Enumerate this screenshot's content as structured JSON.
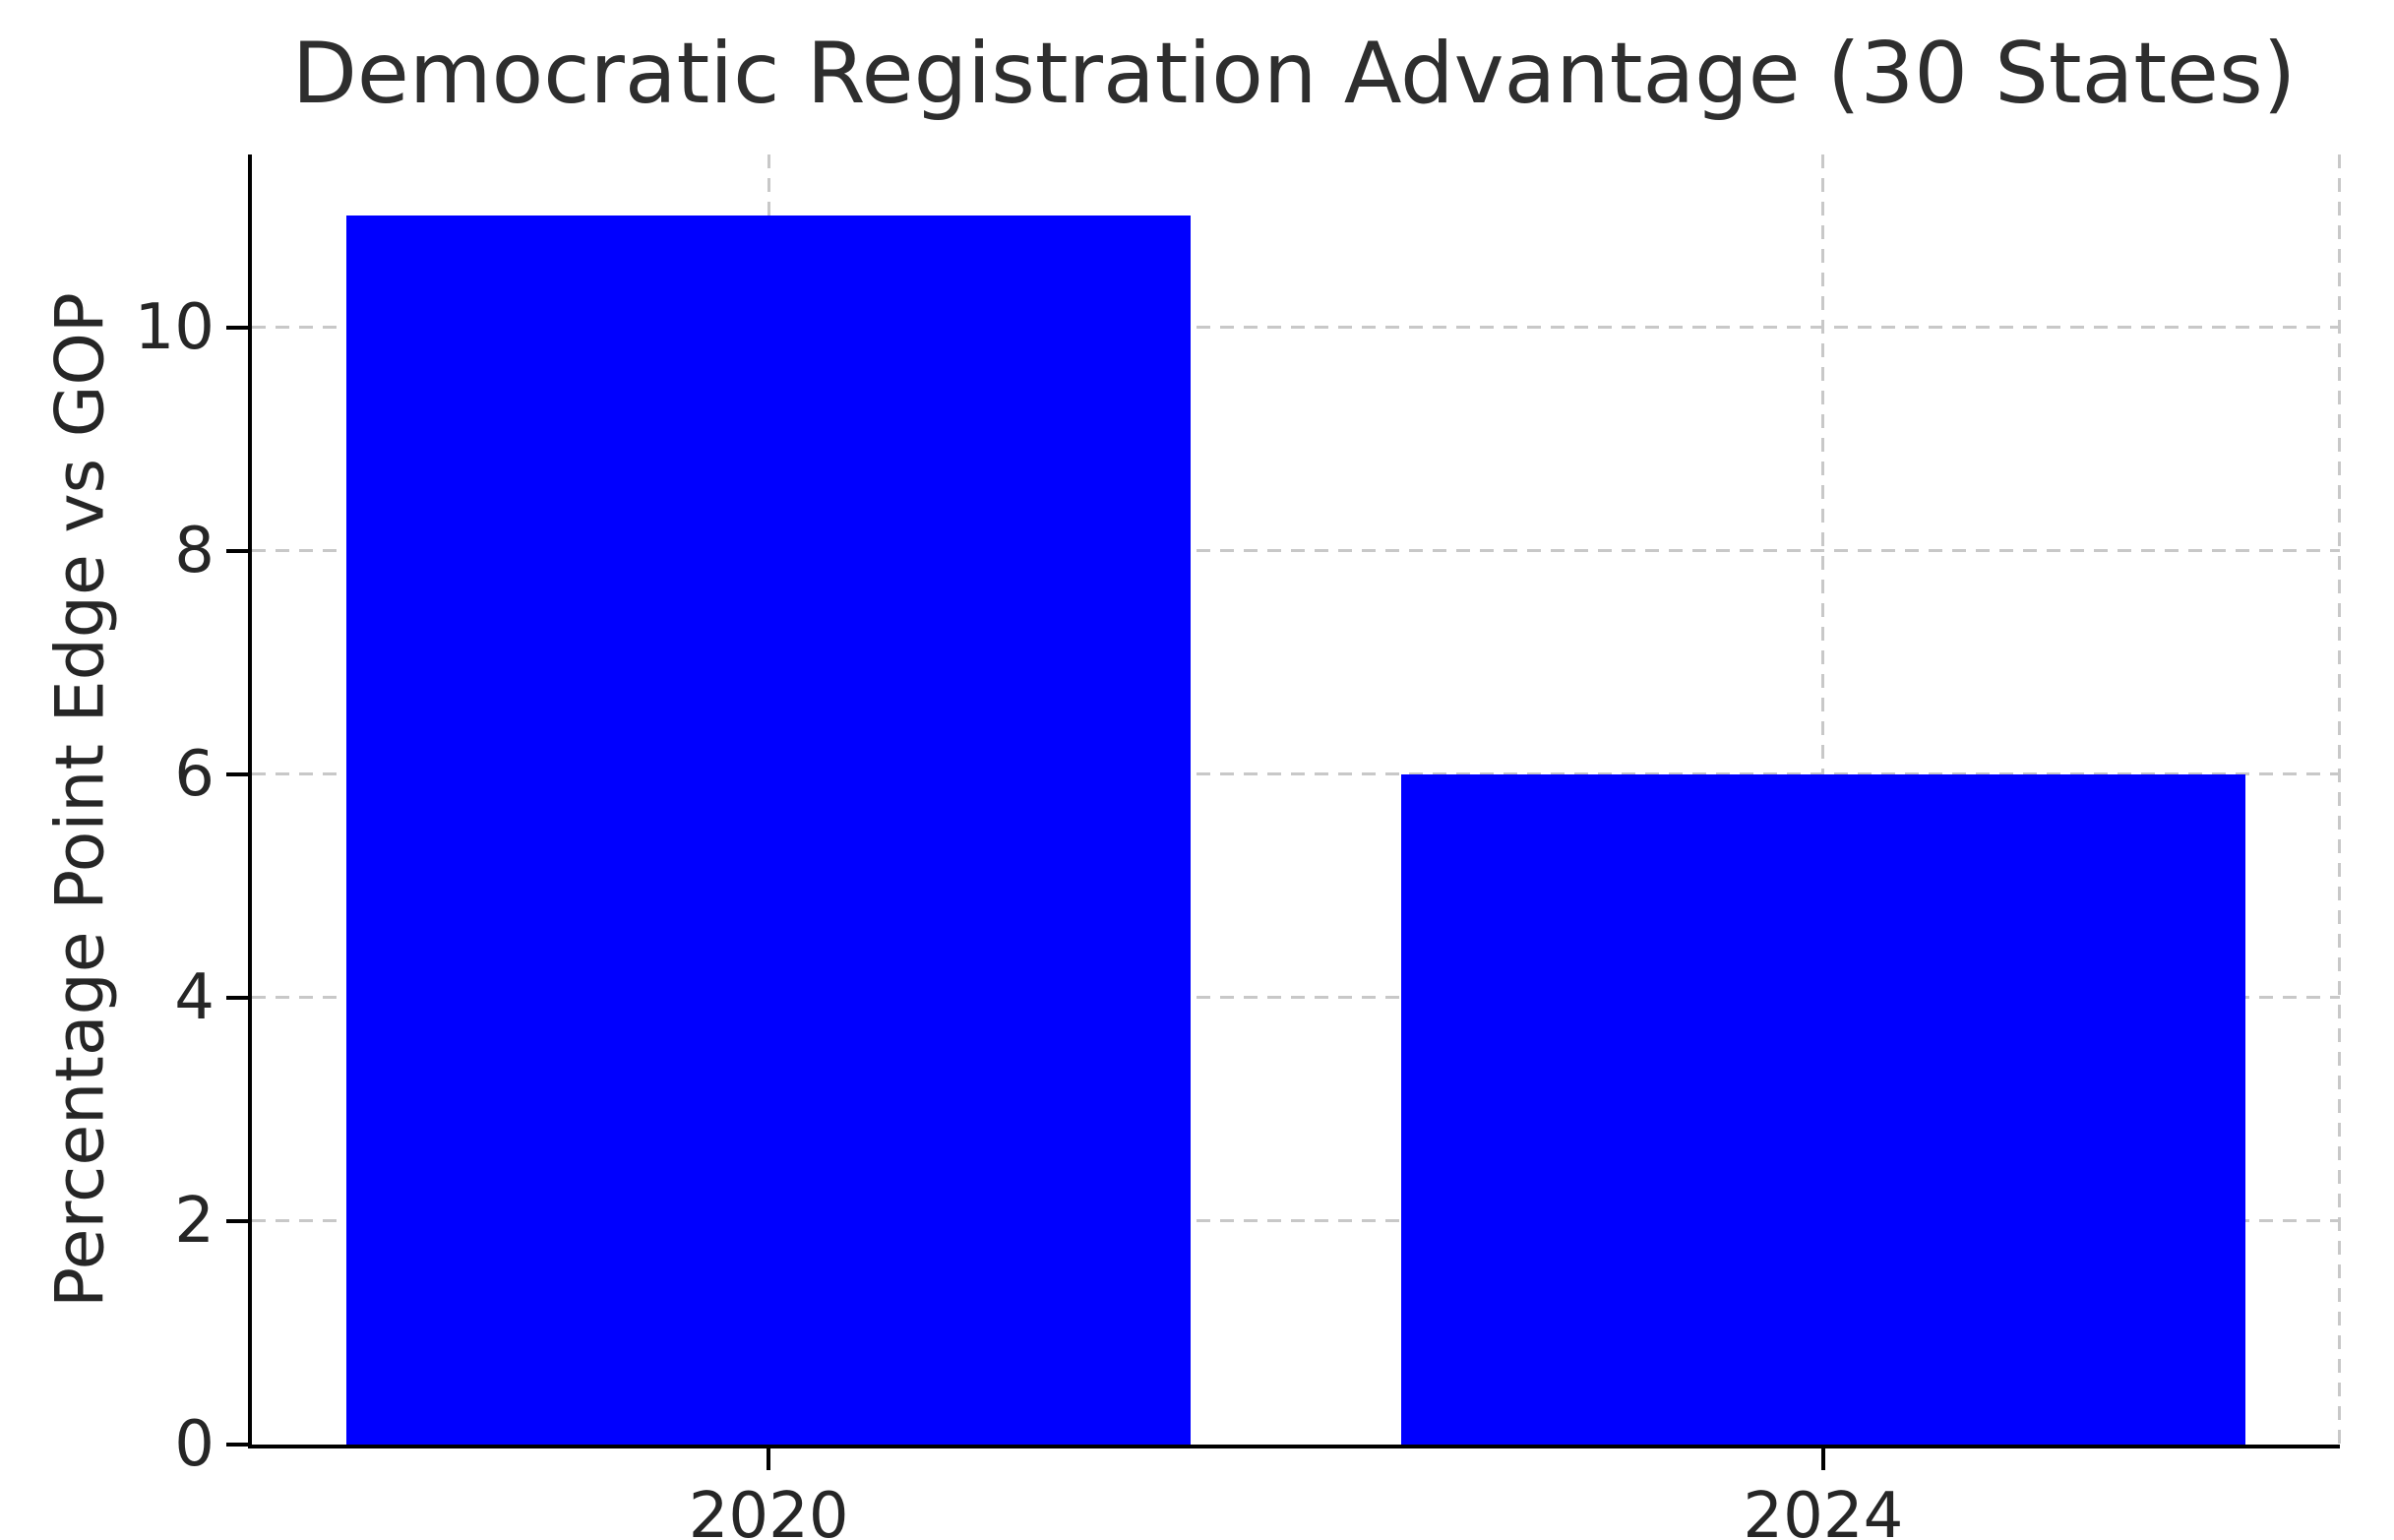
{
  "chart_data": {
    "type": "bar",
    "title": "Democratic Registration Advantage (30 States)",
    "ylabel": "Percentage Point Edge vs GOP",
    "xlabel": "",
    "categories": [
      "2020",
      "2024"
    ],
    "values": [
      11,
      6
    ],
    "yticks": [
      0,
      2,
      4,
      6,
      8,
      10
    ],
    "ytick_labels": [
      "0",
      "2",
      "4",
      "6",
      "8",
      "10"
    ],
    "ylim": [
      0,
      11.55
    ],
    "xlim": [
      -0.49,
      1.49
    ],
    "bar_width": 0.8,
    "bar_color": "#0000ff",
    "grid": true,
    "grid_axis": "both",
    "grid_style": "dashed",
    "grid_color": "#c8c8c8",
    "spine_color": "#000000",
    "text_color": "#262626",
    "background": "#ffffff",
    "legend": "none"
  }
}
